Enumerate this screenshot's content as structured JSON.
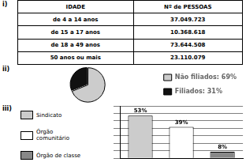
{
  "chart_data": [
    {
      "type": "table",
      "title": "i)",
      "headers": [
        "IDADE",
        "Nº de PESSOAS"
      ],
      "rows": [
        [
          "de 4 a 14 anos",
          "37.049.723"
        ],
        [
          "de 15 a 17 anos",
          "10.368.618"
        ],
        [
          "de 18 a 49 anos",
          "73.644.508"
        ],
        [
          "50 anos ou mais",
          "23.110.079"
        ]
      ]
    },
    {
      "type": "pie",
      "title": "ii)",
      "categories": [
        "Não filiados: 69%",
        "Filiados: 31%"
      ],
      "values": [
        69,
        31
      ],
      "colors": [
        "#cccccc",
        "#111111"
      ],
      "legend": "right"
    },
    {
      "type": "bar",
      "title": "iii)",
      "categories": [
        "Sindicato",
        "Órgão\ncomunitário",
        "Órgão de classe"
      ],
      "values": [
        53,
        39,
        8
      ],
      "value_labels": [
        "53%",
        "39%",
        "8%"
      ],
      "data_labels": true,
      "colors": [
        "#cccccc",
        "#ffffff",
        "#888888"
      ],
      "ylim": [
        0,
        65
      ],
      "yticks": [
        0,
        9.285714285714286,
        18.571428571428573,
        27.857142857142858,
        37.142857142857146,
        46.42857142857143,
        55.714285714285715,
        65
      ],
      "grid": true,
      "tick_labels": false,
      "legend": "left"
    }
  ]
}
